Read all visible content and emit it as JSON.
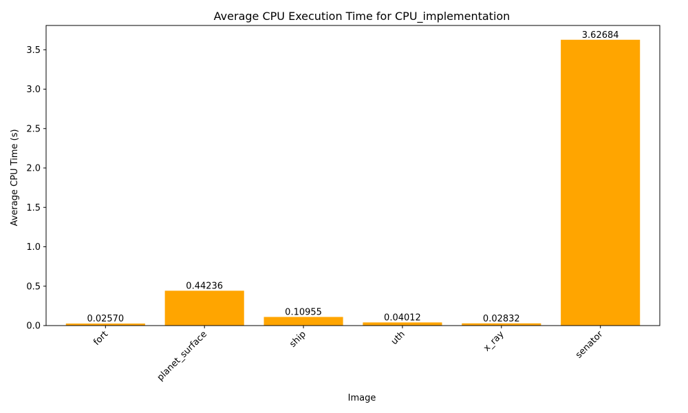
{
  "chart_data": {
    "type": "bar",
    "title": "Average CPU Execution Time for CPU_implementation",
    "xlabel": "Image",
    "ylabel": "Average CPU Time (s)",
    "categories": [
      "fort",
      "planet_surface",
      "ship",
      "uth",
      "x_ray",
      "senator"
    ],
    "values": [
      0.0257,
      0.44236,
      0.10955,
      0.04012,
      0.02832,
      3.62684
    ],
    "value_labels": [
      "0.02570",
      "0.44236",
      "0.10955",
      "0.04012",
      "0.02832",
      "3.62684"
    ],
    "ylim": [
      0,
      3.808182
    ],
    "yticks": [
      0.0,
      0.5,
      1.0,
      1.5,
      2.0,
      2.5,
      3.0,
      3.5
    ],
    "ytick_labels": [
      "0.0",
      "0.5",
      "1.0",
      "1.5",
      "2.0",
      "2.5",
      "3.0",
      "3.5"
    ],
    "bar_color": "#ffa500",
    "grid": false,
    "legend": "none"
  }
}
